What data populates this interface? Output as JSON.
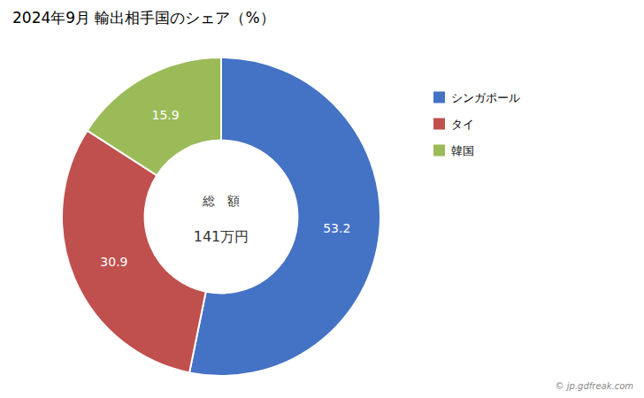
{
  "chart_data": {
    "type": "pie",
    "title": "2024年9月 輸出相手国のシェア（%）",
    "categories": [
      "シンガポール",
      "タイ",
      "韓国"
    ],
    "values": [
      53.2,
      30.9,
      15.9
    ],
    "colors": [
      "#4472C4",
      "#C0504D",
      "#9BBB59"
    ],
    "data_labels": true,
    "legend": "right",
    "annotations": [
      "総　額",
      "141万円",
      "© jp.gdfreak.com"
    ]
  }
}
